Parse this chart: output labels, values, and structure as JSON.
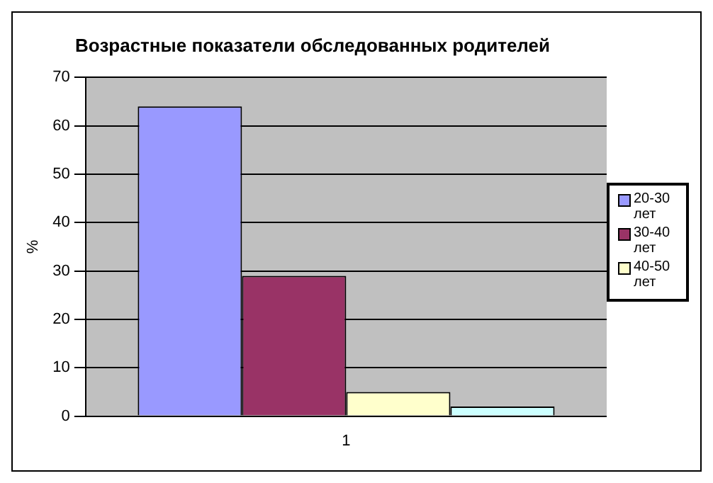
{
  "chart_data": {
    "type": "bar",
    "title": "Возрастные показатели обследованных родителей",
    "ylabel": "%",
    "categories": [
      "1"
    ],
    "series": [
      {
        "name": "20-30 лет",
        "color": "#9999ff",
        "values": [
          64
        ]
      },
      {
        "name": "30-40 лет",
        "color": "#993366",
        "values": [
          29
        ]
      },
      {
        "name": "40-50 лет",
        "color": "#ffffcc",
        "values": [
          5
        ]
      },
      {
        "color": "#ccffff",
        "values": [
          2
        ]
      }
    ],
    "ylim": [
      0,
      70
    ],
    "yticks": [
      0,
      10,
      20,
      30,
      40,
      50,
      60,
      70
    ],
    "grid": "y",
    "legend": "right"
  }
}
